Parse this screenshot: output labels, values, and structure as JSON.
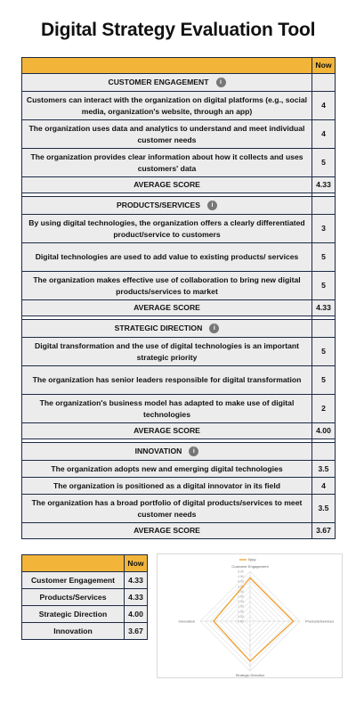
{
  "page": {
    "title": "Digital Strategy Evaluation Tool"
  },
  "main_table": {
    "header_score": "Now",
    "sections": [
      {
        "name": "CUSTOMER ENGAGEMENT",
        "rows": [
          {
            "text": "Customers can interact with the organization on digital platforms (e.g., social media, organization's website, through an app)",
            "score": "4"
          },
          {
            "text": "The organization uses data and analytics to understand and meet individual customer needs",
            "score": "4"
          },
          {
            "text": "The organization provides clear information about how it collects and uses customers' data",
            "score": "5"
          }
        ],
        "average_label": "AVERAGE SCORE",
        "average": "4.33"
      },
      {
        "name": "PRODUCTS/SERVICES",
        "rows": [
          {
            "text": "By using digital technologies, the organization offers a clearly differentiated product/service to customers",
            "score": "3"
          },
          {
            "text": "Digital technologies are used to add value to existing products/ services",
            "score": "5"
          },
          {
            "text": "The organization makes effective use of collaboration to bring new digital products/services to market",
            "score": "5"
          }
        ],
        "average_label": "AVERAGE SCORE",
        "average": "4.33"
      },
      {
        "name": "STRATEGIC DIRECTION",
        "rows": [
          {
            "text": "Digital transformation and the use of digital technologies is an important strategic priority",
            "score": "5"
          },
          {
            "text": "The organization has senior leaders responsible for digital transformation",
            "score": "5"
          },
          {
            "text": "The organization's business model has adapted to make use of digital technologies",
            "score": "2"
          }
        ],
        "average_label": "AVERAGE SCORE",
        "average": "4.00"
      },
      {
        "name": "INNOVATION",
        "rows": [
          {
            "text": "The organization adopts new and emerging digital technologies",
            "score": "3.5"
          },
          {
            "text": "The organization is positioned as a digital innovator in its field",
            "score": "4"
          },
          {
            "text": "The organization has a broad portfolio of digital products/services to meet customer needs",
            "score": "3.5"
          }
        ],
        "average_label": "AVERAGE SCORE",
        "average": "3.67"
      }
    ]
  },
  "summary_table": {
    "header": "Now",
    "rows": [
      {
        "label": "Customer Engagement",
        "value": "4.33"
      },
      {
        "label": "Products/Services",
        "value": "4.33"
      },
      {
        "label": "Strategic Direction",
        "value": "4.00"
      },
      {
        "label": "Innovation",
        "value": "3.67"
      }
    ]
  },
  "chart_data": {
    "type": "radar",
    "legend": "Now",
    "categories": [
      "Customer Engagement",
      "Products/Services",
      "Strategic Direction",
      "Innovation"
    ],
    "series": [
      {
        "name": "Now",
        "values": [
          4.33,
          4.33,
          4.0,
          3.67
        ]
      }
    ],
    "rlim": [
      0,
      5
    ],
    "ticks": [
      "0.00",
      "0.50",
      "1.00",
      "1.50",
      "2.00",
      "2.50",
      "3.00",
      "3.50",
      "4.00",
      "4.50",
      "5.00"
    ],
    "line_color": "#f0a030",
    "grid_color": "#cccccc"
  },
  "icons": {
    "info": "info-icon"
  }
}
